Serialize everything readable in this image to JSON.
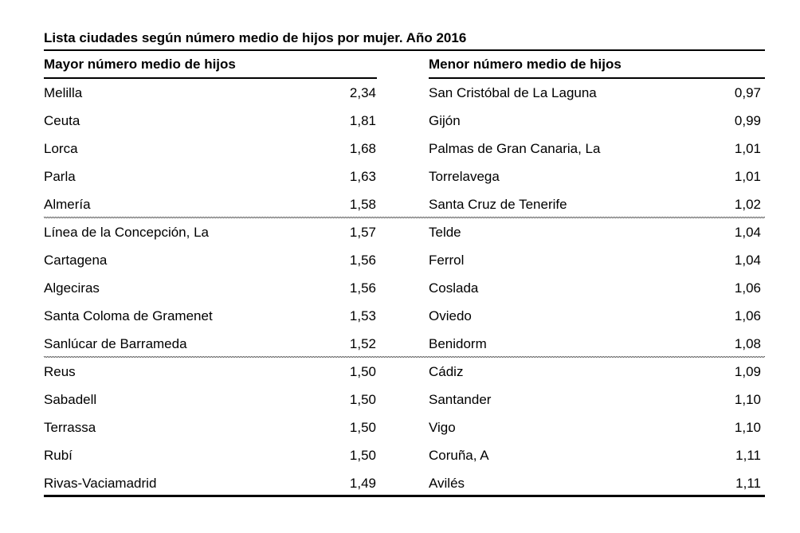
{
  "page_title": "Lista ciudades según número medio de hijos por mujer. Año 2016",
  "table": {
    "columns": {
      "left_header": "Mayor número medio de hijos",
      "right_header": "Menor número medio de hijos"
    },
    "group_breaks_after_rows": [
      5,
      10
    ],
    "rows": [
      {
        "left_city": "Melilla",
        "left_value": "2,34",
        "right_city": "San Cristóbal de La Laguna",
        "right_value": "0,97"
      },
      {
        "left_city": "Ceuta",
        "left_value": "1,81",
        "right_city": "Gijón",
        "right_value": "0,99"
      },
      {
        "left_city": "Lorca",
        "left_value": "1,68",
        "right_city": "Palmas de Gran Canaria, La",
        "right_value": "1,01"
      },
      {
        "left_city": "Parla",
        "left_value": "1,63",
        "right_city": "Torrelavega",
        "right_value": "1,01"
      },
      {
        "left_city": "Almería",
        "left_value": "1,58",
        "right_city": "Santa Cruz de Tenerife",
        "right_value": "1,02"
      },
      {
        "left_city": "Línea de la Concepción, La",
        "left_value": "1,57",
        "right_city": "Telde",
        "right_value": "1,04"
      },
      {
        "left_city": "Cartagena",
        "left_value": "1,56",
        "right_city": "Ferrol",
        "right_value": "1,04"
      },
      {
        "left_city": "Algeciras",
        "left_value": "1,56",
        "right_city": "Coslada",
        "right_value": "1,06"
      },
      {
        "left_city": "Santa Coloma de Gramenet",
        "left_value": "1,53",
        "right_city": "Oviedo",
        "right_value": "1,06"
      },
      {
        "left_city": "Sanlúcar de Barrameda",
        "left_value": "1,52",
        "right_city": "Benidorm",
        "right_value": "1,08"
      },
      {
        "left_city": "Reus",
        "left_value": "1,50",
        "right_city": "Cádiz",
        "right_value": "1,09"
      },
      {
        "left_city": "Sabadell",
        "left_value": "1,50",
        "right_city": "Santander",
        "right_value": "1,10"
      },
      {
        "left_city": "Terrassa",
        "left_value": "1,50",
        "right_city": "Vigo",
        "right_value": "1,10"
      },
      {
        "left_city": "Rubí",
        "left_value": "1,50",
        "right_city": "Coruña, A",
        "right_value": "1,11"
      },
      {
        "left_city": "Rivas-Vaciamadrid",
        "left_value": "1,49",
        "right_city": "Avilés",
        "right_value": "1,11"
      }
    ]
  },
  "colors": {
    "text": "#000000",
    "rule": "#000000",
    "background": "#ffffff"
  }
}
